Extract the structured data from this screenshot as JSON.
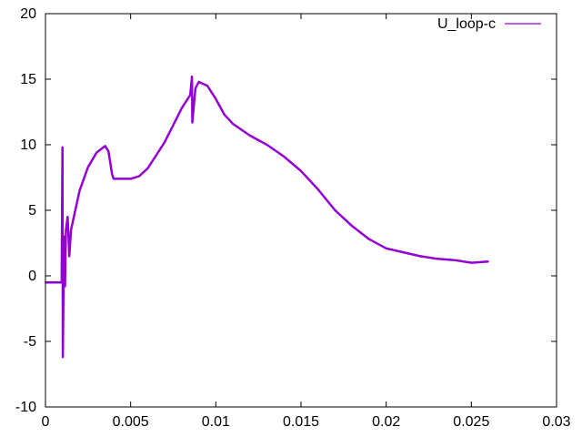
{
  "chart_data": {
    "type": "line",
    "title": "",
    "xlabel": "",
    "ylabel": "",
    "xlim": [
      0,
      0.03
    ],
    "ylim": [
      -10,
      20
    ],
    "xticks": [
      "0",
      "0.005",
      "0.01",
      "0.015",
      "0.02",
      "0.025",
      "0.03"
    ],
    "xtick_values": [
      0,
      0.005,
      0.01,
      0.015,
      0.02,
      0.025,
      0.03
    ],
    "yticks": [
      "-10",
      "-5",
      "0",
      "5",
      "10",
      "15",
      "20"
    ],
    "ytick_values": [
      -10,
      -5,
      0,
      5,
      10,
      15,
      20
    ],
    "grid": false,
    "legend_position": "top-right",
    "series": [
      {
        "name": "U_loop-c",
        "color": "#9400d3",
        "x": [
          0,
          0.0005,
          0.00095,
          0.001,
          0.00102,
          0.00105,
          0.0011,
          0.00115,
          0.0012,
          0.0013,
          0.0014,
          0.0015,
          0.002,
          0.0025,
          0.003,
          0.0035,
          0.0037,
          0.0039,
          0.004,
          0.0045,
          0.005,
          0.0055,
          0.006,
          0.0065,
          0.007,
          0.0075,
          0.008,
          0.0085,
          0.0086,
          0.00862,
          0.0088,
          0.009,
          0.0095,
          0.01,
          0.0105,
          0.011,
          0.012,
          0.013,
          0.014,
          0.015,
          0.016,
          0.017,
          0.018,
          0.019,
          0.02,
          0.021,
          0.022,
          0.023,
          0.024,
          0.025,
          0.026
        ],
        "y": [
          -0.5,
          -0.5,
          -0.5,
          9.8,
          -6.2,
          -2,
          3,
          -0.8,
          3.5,
          4.5,
          1.5,
          3.5,
          6.5,
          8.3,
          9.4,
          9.9,
          9.5,
          7.8,
          7.4,
          7.4,
          7.4,
          7.6,
          8.2,
          9.2,
          10.2,
          11.5,
          12.8,
          13.8,
          15.2,
          11.7,
          14.3,
          14.8,
          14.5,
          13.5,
          12.3,
          11.6,
          10.7,
          10.0,
          9.1,
          8.0,
          6.6,
          5.0,
          3.8,
          2.8,
          2.1,
          1.8,
          1.5,
          1.3,
          1.2,
          1.0,
          1.1
        ]
      }
    ]
  }
}
